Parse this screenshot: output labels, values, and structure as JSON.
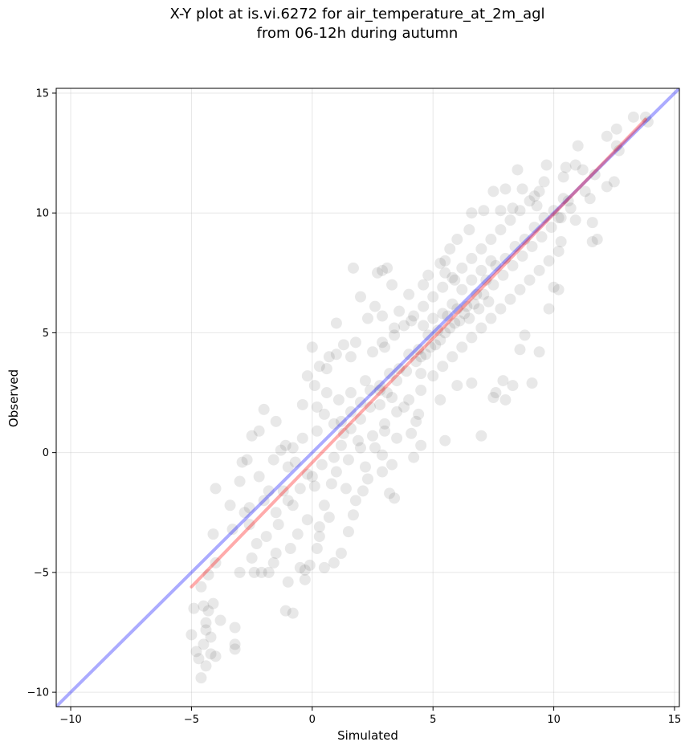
{
  "chart_data": {
    "type": "scatter",
    "title": [
      "X-Y plot at is.vi.6272 for air_temperature_at_2m_agl",
      "from 06-12h during autumn"
    ],
    "xlabel": "Simulated",
    "ylabel": "Observed",
    "xlim": [
      -10.6,
      15.2
    ],
    "ylim": [
      -10.6,
      15.2
    ],
    "xticks": [
      -10,
      -5,
      0,
      5,
      10,
      15
    ],
    "yticks": [
      -10,
      -5,
      0,
      5,
      10,
      15
    ],
    "xtick_labels": [
      "−10",
      "−5",
      "0",
      "5",
      "10",
      "15"
    ],
    "ytick_labels": [
      "−10",
      "−5",
      "0",
      "5",
      "10",
      "15"
    ],
    "grid": true,
    "point_color": "#000000",
    "point_alpha": 0.09,
    "identity_line": {
      "color": "#0000ff",
      "alpha": 0.33,
      "from": [
        -10.6,
        -10.6
      ],
      "to": [
        15.2,
        15.2
      ]
    },
    "fit_line": {
      "color": "#ff0000",
      "alpha": 0.33,
      "from": [
        -5.0,
        -5.6
      ],
      "to": [
        13.8,
        13.9
      ]
    },
    "points": [
      [
        -5.0,
        -7.6
      ],
      [
        -4.8,
        -8.3
      ],
      [
        -4.7,
        -8.6
      ],
      [
        -4.5,
        -8.0
      ],
      [
        -4.4,
        -8.9
      ],
      [
        -4.6,
        -9.4
      ],
      [
        -4.4,
        -7.1
      ],
      [
        -4.2,
        -8.4
      ],
      [
        -4.0,
        -8.5
      ],
      [
        -4.3,
        -6.6
      ],
      [
        -4.5,
        -6.4
      ],
      [
        -4.1,
        -6.3
      ],
      [
        -3.8,
        -7.0
      ],
      [
        -3.2,
        -7.3
      ],
      [
        -3.2,
        -8.0
      ],
      [
        -3.2,
        -8.2
      ],
      [
        -4.9,
        -6.5
      ],
      [
        -4.6,
        -5.6
      ],
      [
        -4.4,
        -7.4
      ],
      [
        -4.2,
        -7.7
      ],
      [
        -4.3,
        -5.1
      ],
      [
        -4.0,
        -4.6
      ],
      [
        -4.1,
        -3.4
      ],
      [
        -4.0,
        -1.5
      ],
      [
        -3.4,
        -2.2
      ],
      [
        -3.0,
        -1.2
      ],
      [
        -2.9,
        -0.4
      ],
      [
        -2.7,
        -0.3
      ],
      [
        -2.6,
        -2.3
      ],
      [
        -2.5,
        -4.4
      ],
      [
        -2.4,
        -5.0
      ],
      [
        -2.1,
        -5.0
      ],
      [
        -3.0,
        -5.0
      ],
      [
        -1.8,
        -5.0
      ],
      [
        -1.5,
        -4.2
      ],
      [
        -1.9,
        -3.5
      ],
      [
        -2.0,
        -2.0
      ],
      [
        -2.2,
        -1.0
      ],
      [
        -1.6,
        -0.3
      ],
      [
        -1.3,
        0.1
      ],
      [
        -2.5,
        0.7
      ],
      [
        -2.2,
        0.9
      ],
      [
        -2.0,
        1.8
      ],
      [
        -1.5,
        1.3
      ],
      [
        -1.1,
        0.3
      ],
      [
        -1.0,
        -0.6
      ],
      [
        -1.2,
        -1.6
      ],
      [
        -0.8,
        -2.2
      ],
      [
        -0.6,
        -3.4
      ],
      [
        -1.4,
        -3.0
      ],
      [
        -0.9,
        -4.0
      ],
      [
        -0.5,
        -4.8
      ],
      [
        -0.3,
        -4.9
      ],
      [
        -0.1,
        -4.7
      ],
      [
        -1.1,
        -6.6
      ],
      [
        -0.8,
        -6.7
      ],
      [
        -1.0,
        -5.4
      ],
      [
        -0.3,
        -5.3
      ],
      [
        0.2,
        -4.0
      ],
      [
        0.5,
        -4.8
      ],
      [
        0.9,
        -4.6
      ],
      [
        1.2,
        -4.2
      ],
      [
        0.3,
        -3.1
      ],
      [
        0.7,
        -2.7
      ],
      [
        1.5,
        -3.3
      ],
      [
        1.7,
        -2.6
      ],
      [
        1.4,
        -1.5
      ],
      [
        2.1,
        -1.6
      ],
      [
        2.3,
        -1.1
      ],
      [
        2.9,
        -0.8
      ],
      [
        3.2,
        -1.7
      ],
      [
        3.4,
        -1.9
      ],
      [
        2.9,
        -0.1
      ],
      [
        3.3,
        -0.5
      ],
      [
        4.2,
        -0.2
      ],
      [
        4.5,
        0.3
      ],
      [
        5.5,
        0.5
      ],
      [
        7.0,
        0.7
      ],
      [
        4.4,
        1.6
      ],
      [
        5.3,
        2.2
      ],
      [
        6.0,
        2.8
      ],
      [
        6.6,
        2.9
      ],
      [
        7.5,
        2.3
      ],
      [
        8.0,
        2.2
      ],
      [
        7.9,
        3.0
      ],
      [
        8.3,
        2.8
      ],
      [
        7.6,
        2.5
      ],
      [
        9.1,
        2.9
      ],
      [
        8.6,
        4.3
      ],
      [
        9.4,
        4.2
      ],
      [
        8.8,
        4.9
      ],
      [
        9.8,
        6.0
      ],
      [
        10.0,
        6.9
      ],
      [
        10.2,
        6.8
      ],
      [
        11.6,
        8.8
      ],
      [
        11.8,
        8.9
      ],
      [
        11.6,
        9.6
      ],
      [
        12.2,
        11.1
      ],
      [
        11.7,
        11.6
      ],
      [
        12.5,
        11.3
      ],
      [
        12.6,
        12.8
      ],
      [
        12.7,
        12.6
      ],
      [
        12.2,
        13.2
      ],
      [
        12.6,
        13.5
      ],
      [
        13.3,
        14.0
      ],
      [
        13.9,
        13.8
      ],
      [
        13.8,
        14.0
      ],
      [
        11.0,
        12.8
      ],
      [
        10.9,
        12.0
      ],
      [
        11.2,
        11.8
      ],
      [
        10.5,
        11.9
      ],
      [
        9.7,
        12.0
      ],
      [
        9.6,
        11.3
      ],
      [
        10.4,
        11.5
      ],
      [
        11.3,
        10.9
      ],
      [
        11.5,
        10.6
      ],
      [
        10.2,
        9.8
      ],
      [
        10.6,
        10.5
      ],
      [
        10.9,
        9.7
      ],
      [
        10.3,
        8.8
      ],
      [
        9.2,
        10.7
      ],
      [
        8.5,
        11.8
      ],
      [
        8.7,
        11.0
      ],
      [
        9.3,
        10.3
      ],
      [
        7.8,
        10.1
      ],
      [
        8.3,
        10.2
      ],
      [
        7.5,
        10.9
      ],
      [
        8.0,
        11.0
      ],
      [
        7.1,
        10.1
      ],
      [
        6.6,
        10.0
      ],
      [
        6.5,
        9.3
      ],
      [
        6.0,
        8.9
      ],
      [
        5.7,
        8.5
      ],
      [
        5.5,
        8.0
      ],
      [
        5.9,
        7.2
      ],
      [
        5.5,
        7.5
      ],
      [
        5.3,
        7.9
      ],
      [
        4.8,
        7.4
      ],
      [
        4.6,
        7.0
      ],
      [
        4.0,
        6.6
      ],
      [
        3.3,
        7.0
      ],
      [
        2.9,
        7.6
      ],
      [
        3.1,
        7.7
      ],
      [
        2.7,
        7.5
      ],
      [
        1.7,
        7.7
      ],
      [
        2.0,
        6.5
      ],
      [
        2.6,
        6.1
      ],
      [
        2.3,
        5.6
      ],
      [
        2.9,
        5.7
      ],
      [
        3.6,
        5.9
      ],
      [
        4.1,
        5.5
      ],
      [
        3.4,
        5.2
      ],
      [
        2.9,
        4.6
      ],
      [
        2.5,
        4.2
      ],
      [
        1.8,
        4.6
      ],
      [
        1.6,
        4.0
      ],
      [
        1.3,
        4.5
      ],
      [
        1.0,
        4.1
      ],
      [
        1.0,
        5.4
      ],
      [
        0.7,
        4.0
      ],
      [
        0.0,
        4.4
      ],
      [
        0.3,
        3.6
      ],
      [
        0.6,
        3.5
      ],
      [
        0.1,
        2.8
      ],
      [
        -0.2,
        3.2
      ],
      [
        -0.4,
        2.0
      ],
      [
        0.2,
        1.9
      ],
      [
        0.5,
        1.6
      ],
      [
        0.9,
        1.2
      ],
      [
        1.3,
        0.8
      ],
      [
        1.9,
        0.5
      ],
      [
        2.6,
        0.2
      ],
      [
        3.0,
        0.9
      ],
      [
        3.5,
        0.6
      ],
      [
        4.1,
        0.8
      ],
      [
        4.3,
        1.3
      ],
      [
        3.8,
        1.9
      ],
      [
        3.3,
        2.3
      ],
      [
        2.8,
        2.6
      ],
      [
        2.2,
        3.0
      ],
      [
        1.6,
        2.5
      ],
      [
        1.1,
        2.2
      ],
      [
        0.6,
        2.5
      ],
      [
        0.2,
        0.9
      ],
      [
        -0.4,
        0.6
      ],
      [
        -0.8,
        0.2
      ],
      [
        -0.7,
        -0.4
      ],
      [
        -0.2,
        -0.9
      ],
      [
        0.1,
        -1.4
      ],
      [
        0.4,
        -0.5
      ],
      [
        0.9,
        -0.2
      ],
      [
        1.2,
        0.3
      ],
      [
        1.6,
        1.0
      ],
      [
        2.0,
        1.4
      ],
      [
        2.4,
        1.9
      ],
      [
        2.8,
        2.0
      ],
      [
        3.1,
        2.5
      ],
      [
        3.5,
        3.0
      ],
      [
        3.9,
        3.4
      ],
      [
        4.3,
        3.8
      ],
      [
        4.7,
        4.1
      ],
      [
        5.1,
        4.5
      ],
      [
        5.5,
        5.0
      ],
      [
        5.9,
        5.4
      ],
      [
        6.3,
        5.8
      ],
      [
        6.7,
        6.2
      ],
      [
        7.1,
        6.6
      ],
      [
        7.5,
        7.0
      ],
      [
        7.9,
        7.4
      ],
      [
        8.3,
        7.8
      ],
      [
        8.7,
        8.2
      ],
      [
        9.1,
        8.6
      ],
      [
        9.5,
        9.0
      ],
      [
        9.9,
        9.4
      ],
      [
        10.3,
        9.8
      ],
      [
        10.7,
        10.2
      ],
      [
        4.5,
        2.6
      ],
      [
        5.0,
        3.2
      ],
      [
        5.4,
        3.6
      ],
      [
        5.8,
        4.0
      ],
      [
        6.2,
        4.4
      ],
      [
        6.6,
        4.8
      ],
      [
        7.0,
        5.2
      ],
      [
        7.4,
        5.6
      ],
      [
        7.8,
        6.0
      ],
      [
        8.2,
        6.4
      ],
      [
        8.6,
        6.8
      ],
      [
        9.0,
        7.2
      ],
      [
        9.4,
        7.6
      ],
      [
        9.8,
        8.0
      ],
      [
        10.2,
        8.4
      ],
      [
        3.0,
        4.4
      ],
      [
        3.4,
        4.9
      ],
      [
        3.8,
        5.3
      ],
      [
        4.2,
        5.7
      ],
      [
        4.6,
        6.1
      ],
      [
        5.0,
        6.5
      ],
      [
        5.4,
        6.9
      ],
      [
        5.8,
        7.3
      ],
      [
        6.2,
        7.7
      ],
      [
        6.6,
        8.1
      ],
      [
        7.0,
        8.5
      ],
      [
        7.4,
        8.9
      ],
      [
        7.8,
        9.3
      ],
      [
        8.2,
        9.7
      ],
      [
        8.6,
        10.1
      ],
      [
        9.0,
        10.5
      ],
      [
        9.4,
        10.9
      ],
      [
        1.0,
        -0.8
      ],
      [
        1.5,
        -0.3
      ],
      [
        2.0,
        0.2
      ],
      [
        2.5,
        0.7
      ],
      [
        3.0,
        1.2
      ],
      [
        3.5,
        1.7
      ],
      [
        4.0,
        2.2
      ],
      [
        4.5,
        3.3
      ],
      [
        -1.5,
        -2.5
      ],
      [
        -1.0,
        -2.0
      ],
      [
        -0.5,
        -1.5
      ],
      [
        0.0,
        -1.0
      ],
      [
        0.5,
        -2.2
      ],
      [
        -0.2,
        -2.8
      ],
      [
        0.3,
        -3.5
      ],
      [
        -1.8,
        -1.6
      ],
      [
        -2.6,
        -3.0
      ],
      [
        -2.3,
        -3.8
      ],
      [
        -1.6,
        -4.6
      ],
      [
        -3.3,
        -3.2
      ],
      [
        -2.8,
        -2.5
      ],
      [
        0.8,
        -1.3
      ],
      [
        1.8,
        -2.0
      ],
      [
        2.2,
        -0.6
      ],
      [
        6.0,
        6.0
      ],
      [
        6.4,
        6.1
      ],
      [
        6.8,
        6.6
      ],
      [
        7.2,
        7.2
      ],
      [
        5.6,
        5.7
      ],
      [
        5.2,
        5.1
      ],
      [
        4.8,
        4.9
      ],
      [
        4.4,
        4.3
      ],
      [
        4.0,
        4.1
      ],
      [
        3.6,
        3.5
      ],
      [
        3.2,
        3.3
      ],
      [
        2.8,
        2.8
      ],
      [
        2.4,
        2.6
      ],
      [
        2.0,
        2.1
      ],
      [
        1.6,
        1.7
      ],
      [
        1.2,
        1.3
      ],
      [
        7.6,
        7.8
      ],
      [
        8.0,
        8.1
      ],
      [
        8.4,
        8.6
      ],
      [
        8.8,
        8.9
      ],
      [
        9.2,
        9.4
      ],
      [
        9.6,
        9.8
      ],
      [
        10.0,
        10.1
      ],
      [
        10.4,
        10.6
      ],
      [
        6.1,
        5.5
      ],
      [
        6.5,
        5.6
      ],
      [
        6.9,
        6.0
      ],
      [
        7.3,
        6.3
      ],
      [
        5.7,
        5.2
      ],
      [
        5.3,
        4.7
      ],
      [
        4.9,
        4.4
      ],
      [
        4.5,
        4.0
      ],
      [
        6.2,
        6.8
      ],
      [
        6.6,
        7.2
      ],
      [
        7.0,
        7.6
      ],
      [
        7.4,
        8.0
      ],
      [
        5.8,
        6.2
      ],
      [
        5.4,
        5.8
      ],
      [
        5.0,
        5.6
      ],
      [
        4.6,
        5.3
      ]
    ]
  }
}
